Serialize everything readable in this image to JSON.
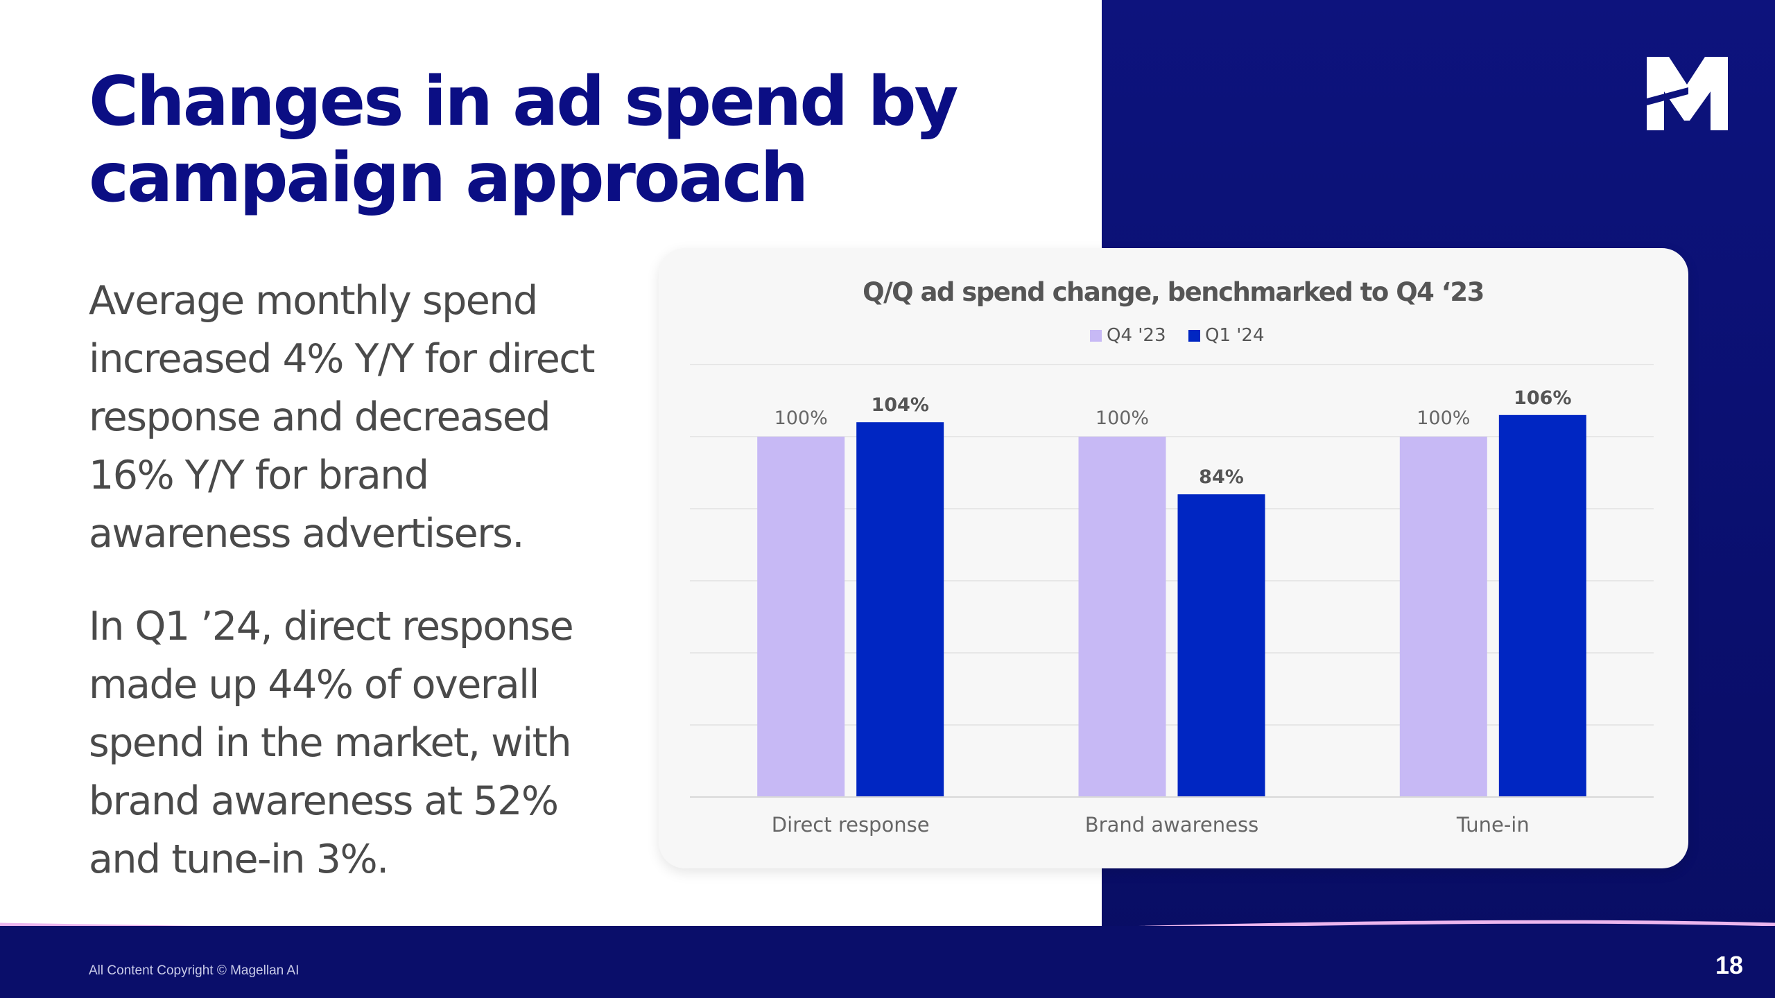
{
  "slide": {
    "title": "Changes in ad spend by campaign approach",
    "body": [
      "Average monthly spend increased 4% Y/Y for direct response and decreased 16% Y/Y for brand awareness advertisers.",
      "In Q1 ’24, direct response made up 44% of overall spend in the market, with brand awareness at 52% and tune-in 3%."
    ],
    "copyright": "All Content Copyright © Magellan AI",
    "page_number": "18",
    "logo_icon": "magellan-m-logo-icon"
  },
  "colors": {
    "title": "#0b0e84",
    "panel": "#0d137d",
    "series_q4": "#c7b9f5",
    "series_q1": "#0026c2",
    "body_text": "#4a4a4a"
  },
  "chart_data": {
    "type": "bar",
    "title": "Q/Q ad spend change, benchmarked to Q4 ‘23",
    "categories": [
      "Direct response",
      "Brand awareness",
      "Tune-in"
    ],
    "series": [
      {
        "name": "Q4 '23",
        "values": [
          100,
          100,
          100
        ],
        "labels": [
          "100%",
          "100%",
          "100%"
        ],
        "color": "#c7b9f5"
      },
      {
        "name": "Q1 '24",
        "values": [
          104,
          84,
          106
        ],
        "labels": [
          "104%",
          "84%",
          "106%"
        ],
        "color": "#0026c2"
      }
    ],
    "ylim": [
      0,
      120
    ],
    "grid": true,
    "legend": "top-center",
    "xlabel": "",
    "ylabel": ""
  }
}
